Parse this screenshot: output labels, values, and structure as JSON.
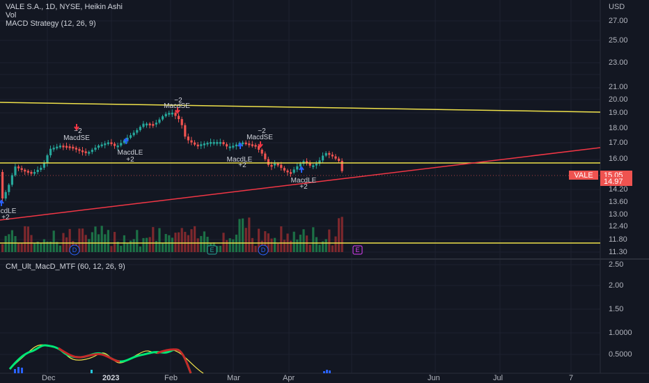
{
  "header": {
    "title": "VALE S.A., 1D, NYSE, Heikin Ashi",
    "vol": "Vol",
    "strategy": "MACD Strategy (12, 26, 9)",
    "currency": "USD"
  },
  "price_scale": [
    "27.00",
    "25.00",
    "23.00",
    "21.00",
    "20.00",
    "19.00",
    "18.00",
    "17.00",
    "16.00",
    "14.20",
    "13.60",
    "13.00",
    "12.40",
    "11.80",
    "11.30"
  ],
  "price_tags": {
    "ticker": "VALE",
    "last": "15.05",
    "prev": "14.97"
  },
  "osc_scale": [
    "2.50",
    "2.00",
    "1.50",
    "1.0000",
    "0.5000"
  ],
  "osc_title": "CM_Ult_MacD_MTF (60, 12, 26, 9)",
  "time_axis": [
    "Dec",
    "2023",
    "Feb",
    "Mar",
    "Apr",
    "Jun",
    "Jul",
    "7"
  ],
  "signals": [
    {
      "top": "−2",
      "bottom": "MacdSE"
    },
    {
      "top": "MacdLE",
      "bottom": "+2"
    },
    {
      "top": "−2",
      "bottom": "MacdSE"
    },
    {
      "top": "MacdLE",
      "bottom": "+2"
    },
    {
      "top": "−2",
      "bottom": "MacdSE"
    },
    {
      "top": "MacdLE",
      "bottom": "+2"
    },
    {
      "top": "cdLE",
      "bottom": "+2"
    }
  ],
  "event_markers": [
    "D",
    "E",
    "D",
    "E"
  ],
  "colors": {
    "up": "#26a69a",
    "down": "#ef5350",
    "trend_yellow": "#f0e24a",
    "trend_red": "#f23645",
    "bg": "#131722",
    "grid": "#1e2230"
  }
}
